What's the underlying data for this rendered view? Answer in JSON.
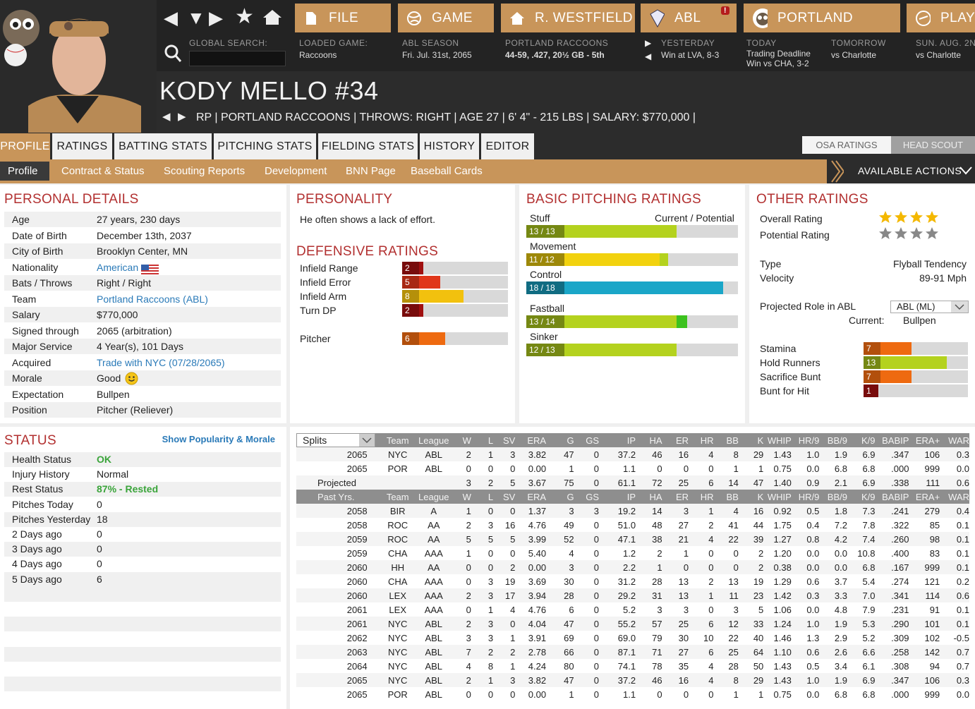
{
  "nav": {
    "file": "FILE",
    "game": "GAME",
    "manager": "R. WESTFIELD",
    "league": "ABL",
    "team": "PORTLAND",
    "play": "PLAY",
    "global_search_label": "GLOBAL SEARCH:",
    "global_search_value": ""
  },
  "loaded_game": {
    "label": "LOADED GAME:",
    "value": "Raccoons"
  },
  "season": {
    "label": "ABL SEASON",
    "value": "Fri. Jul. 31st, 2065"
  },
  "team_record": {
    "label": "PORTLAND RACCOONS",
    "value": "44-59, .427, 20½ GB - 5th"
  },
  "yesterday": {
    "label": "YESTERDAY",
    "value": "Win at LVA, 8-3"
  },
  "today": {
    "label": "TODAY",
    "line1": "Trading Deadline",
    "line2": "Win vs CHA, 3-2"
  },
  "tomorrow": {
    "label": "TOMORROW",
    "value": "vs Charlotte"
  },
  "next": {
    "label": "SUN. AUG. 2N",
    "value": "vs Charlotte"
  },
  "player": {
    "name": "KODY MELLO  #34",
    "info": "RP | PORTLAND RACCOONS  |  THROWS: RIGHT  |  AGE 27  |  6' 4\" - 215 LBS  |  SALARY: $770,000  |"
  },
  "tabs": [
    "PROFILE",
    "RATINGS",
    "BATTING STATS",
    "PITCHING STATS",
    "FIELDING STATS",
    "HISTORY",
    "EDITOR"
  ],
  "rating_toggle": [
    "OSA RATINGS",
    "HEAD SCOUT"
  ],
  "subnav": [
    "Profile",
    "Contract & Status",
    "Scouting Reports",
    "Development",
    "BNN Page",
    "Baseball Cards"
  ],
  "available_actions": "AVAILABLE ACTIONS",
  "personal": {
    "title": "PERSONAL DETAILS",
    "rows": [
      [
        "Age",
        "27 years, 230 days"
      ],
      [
        "Date of Birth",
        "December 13th, 2037"
      ],
      [
        "City of Birth",
        "Brooklyn Center, MN"
      ],
      [
        "Nationality",
        "American"
      ],
      [
        "Bats / Throws",
        "Right / Right"
      ],
      [
        "Team",
        "Portland Raccoons (ABL)"
      ],
      [
        "Salary",
        "$770,000"
      ],
      [
        "Signed through",
        "2065 (arbitration)"
      ],
      [
        "Major Service",
        "4 Year(s), 101 Days"
      ],
      [
        "Acquired",
        "Trade with NYC (07/28/2065)"
      ],
      [
        "Morale",
        "Good"
      ],
      [
        "Expectation",
        "Bullpen"
      ],
      [
        "Position",
        "Pitcher (Reliever)"
      ]
    ]
  },
  "personality": {
    "title": "PERSONALITY",
    "text": "He often shows a lack of effort."
  },
  "defensive": {
    "title": "DEFENSIVE RATINGS",
    "items": [
      {
        "label": "Infield Range",
        "value": "2",
        "pct": 0.2,
        "color": "#a01010"
      },
      {
        "label": "Infield Error",
        "value": "5",
        "pct": 0.36,
        "color": "#e0361a"
      },
      {
        "label": "Infield Arm",
        "value": "8",
        "pct": 0.58,
        "color": "#f2c10e"
      },
      {
        "label": "Turn DP",
        "value": "2",
        "pct": 0.2,
        "color": "#a01010"
      },
      {
        "label": "Pitcher",
        "value": "6",
        "pct": 0.41,
        "color": "#ee6a10"
      }
    ]
  },
  "pitching": {
    "title": "BASIC PITCHING RATINGS",
    "header": "Current / Potential",
    "items": [
      {
        "label": "Stuff",
        "value": "13 / 13",
        "cur": 0.71,
        "pot": 0.71,
        "color": "#b4d21e",
        "pcolor": "#b4d21e"
      },
      {
        "label": "Movement",
        "value": "11 / 12",
        "cur": 0.63,
        "pot": 0.67,
        "color": "#f2d20e",
        "pcolor": "#b4d21e"
      },
      {
        "label": "Control",
        "value": "18 / 18",
        "cur": 0.93,
        "pot": 0.93,
        "color": "#1aa6c8",
        "pcolor": "#1aa6c8"
      },
      {
        "label": "Fastball",
        "value": "13 / 14",
        "cur": 0.71,
        "pot": 0.76,
        "color": "#b4d21e",
        "pcolor": "#3cc21e"
      },
      {
        "label": "Sinker",
        "value": "12 / 13",
        "cur": 0.67,
        "pot": 0.71,
        "color": "#b4d21e",
        "pcolor": "#b4d21e"
      }
    ]
  },
  "other": {
    "title": "OTHER RATINGS",
    "overall_label": "Overall Rating",
    "overall_stars": 4,
    "potential_label": "Potential Rating",
    "potential_stars": 4,
    "type_label": "Type",
    "type_value": "Flyball Tendency",
    "velocity_label": "Velocity",
    "velocity_value": "89-91 Mph",
    "role_label": "Projected Role in ABL",
    "role_select": "ABL (ML)",
    "current_label": "Current:",
    "current_value": "Bullpen",
    "items": [
      {
        "label": "Stamina",
        "value": "7",
        "pct": 0.46,
        "color": "#ee6a10"
      },
      {
        "label": "Hold Runners",
        "value": "13",
        "pct": 0.8,
        "color": "#b4d21e"
      },
      {
        "label": "Sacrifice Bunt",
        "value": "7",
        "pct": 0.46,
        "color": "#ee6a10"
      },
      {
        "label": "Bunt for Hit",
        "value": "1",
        "pct": 0.14,
        "color": "#a01010"
      }
    ]
  },
  "status": {
    "title": "STATUS",
    "link": "Show Popularity & Morale",
    "rows": [
      [
        "Health Status",
        "OK"
      ],
      [
        "Injury History",
        "Normal"
      ],
      [
        "Rest Status",
        "87% - Rested"
      ],
      [
        "Pitches Today",
        "0"
      ],
      [
        "Pitches Yesterday",
        "18"
      ],
      [
        "2 Days ago",
        "0"
      ],
      [
        "3 Days ago",
        "0"
      ],
      [
        "4 Days ago",
        "0"
      ],
      [
        "5 Days ago",
        "6"
      ]
    ]
  },
  "stats": {
    "splits_label": "Splits",
    "header": [
      "Team",
      "League",
      "W",
      "L",
      "SV",
      "ERA",
      "G",
      "GS",
      "IP",
      "HA",
      "ER",
      "HR",
      "BB",
      "K",
      "WHIP",
      "HR/9",
      "BB/9",
      "K/9",
      "BABIP",
      "ERA+",
      "WAR"
    ],
    "current": [
      [
        "2065",
        "NYC",
        "ABL",
        "2",
        "1",
        "3",
        "3.82",
        "47",
        "0",
        "37.2",
        "46",
        "16",
        "4",
        "8",
        "29",
        "1.43",
        "1.0",
        "1.9",
        "6.9",
        ".347",
        "106",
        "0.3"
      ],
      [
        "2065",
        "POR",
        "ABL",
        "0",
        "0",
        "0",
        "0.00",
        "1",
        "0",
        "1.1",
        "0",
        "0",
        "0",
        "1",
        "1",
        "0.75",
        "0.0",
        "6.8",
        "6.8",
        ".000",
        "999",
        "0.0"
      ],
      [
        "Projected",
        "",
        "",
        "3",
        "2",
        "5",
        "3.67",
        "75",
        "0",
        "61.1",
        "72",
        "25",
        "6",
        "14",
        "47",
        "1.40",
        "0.9",
        "2.1",
        "6.9",
        ".338",
        "111",
        "0.6"
      ]
    ],
    "past_label": "Past Yrs.",
    "past": [
      [
        "2058",
        "BIR",
        "A",
        "1",
        "0",
        "0",
        "1.37",
        "3",
        "3",
        "19.2",
        "14",
        "3",
        "1",
        "4",
        "16",
        "0.92",
        "0.5",
        "1.8",
        "7.3",
        ".241",
        "279",
        "0.4"
      ],
      [
        "2058",
        "ROC",
        "AA",
        "2",
        "3",
        "16",
        "4.76",
        "49",
        "0",
        "51.0",
        "48",
        "27",
        "2",
        "41",
        "44",
        "1.75",
        "0.4",
        "7.2",
        "7.8",
        ".322",
        "85",
        "0.1"
      ],
      [
        "2059",
        "ROC",
        "AA",
        "5",
        "5",
        "5",
        "3.99",
        "52",
        "0",
        "47.1",
        "38",
        "21",
        "4",
        "22",
        "39",
        "1.27",
        "0.8",
        "4.2",
        "7.4",
        ".260",
        "98",
        "0.1"
      ],
      [
        "2059",
        "CHA",
        "AAA",
        "1",
        "0",
        "0",
        "5.40",
        "4",
        "0",
        "1.2",
        "2",
        "1",
        "0",
        "0",
        "2",
        "1.20",
        "0.0",
        "0.0",
        "10.8",
        ".400",
        "83",
        "0.1"
      ],
      [
        "2060",
        "HH",
        "AA",
        "0",
        "0",
        "2",
        "0.00",
        "3",
        "0",
        "2.2",
        "1",
        "0",
        "0",
        "0",
        "2",
        "0.38",
        "0.0",
        "0.0",
        "6.8",
        ".167",
        "999",
        "0.1"
      ],
      [
        "2060",
        "CHA",
        "AAA",
        "0",
        "3",
        "19",
        "3.69",
        "30",
        "0",
        "31.2",
        "28",
        "13",
        "2",
        "13",
        "19",
        "1.29",
        "0.6",
        "3.7",
        "5.4",
        ".274",
        "121",
        "0.2"
      ],
      [
        "2060",
        "LEX",
        "AAA",
        "2",
        "3",
        "17",
        "3.94",
        "28",
        "0",
        "29.2",
        "31",
        "13",
        "1",
        "11",
        "23",
        "1.42",
        "0.3",
        "3.3",
        "7.0",
        ".341",
        "114",
        "0.6"
      ],
      [
        "2061",
        "LEX",
        "AAA",
        "0",
        "1",
        "4",
        "4.76",
        "6",
        "0",
        "5.2",
        "3",
        "3",
        "0",
        "3",
        "5",
        "1.06",
        "0.0",
        "4.8",
        "7.9",
        ".231",
        "91",
        "0.1"
      ],
      [
        "2061",
        "NYC",
        "ABL",
        "2",
        "3",
        "0",
        "4.04",
        "47",
        "0",
        "55.2",
        "57",
        "25",
        "6",
        "12",
        "33",
        "1.24",
        "1.0",
        "1.9",
        "5.3",
        ".290",
        "101",
        "0.1"
      ],
      [
        "2062",
        "NYC",
        "ABL",
        "3",
        "3",
        "1",
        "3.91",
        "69",
        "0",
        "69.0",
        "79",
        "30",
        "10",
        "22",
        "40",
        "1.46",
        "1.3",
        "2.9",
        "5.2",
        ".309",
        "102",
        "-0.5"
      ],
      [
        "2063",
        "NYC",
        "ABL",
        "7",
        "2",
        "2",
        "2.78",
        "66",
        "0",
        "87.1",
        "71",
        "27",
        "6",
        "25",
        "64",
        "1.10",
        "0.6",
        "2.6",
        "6.6",
        ".258",
        "142",
        "0.7"
      ],
      [
        "2064",
        "NYC",
        "ABL",
        "4",
        "8",
        "1",
        "4.24",
        "80",
        "0",
        "74.1",
        "78",
        "35",
        "4",
        "28",
        "50",
        "1.43",
        "0.5",
        "3.4",
        "6.1",
        ".308",
        "94",
        "0.7"
      ],
      [
        "2065",
        "NYC",
        "ABL",
        "2",
        "1",
        "3",
        "3.82",
        "47",
        "0",
        "37.2",
        "46",
        "16",
        "4",
        "8",
        "29",
        "1.43",
        "1.0",
        "1.9",
        "6.9",
        ".347",
        "106",
        "0.3"
      ],
      [
        "2065",
        "POR",
        "ABL",
        "0",
        "0",
        "0",
        "0.00",
        "1",
        "0",
        "1.1",
        "0",
        "0",
        "0",
        "1",
        "1",
        "0.75",
        "0.0",
        "6.8",
        "6.8",
        ".000",
        "999",
        "0.0"
      ]
    ]
  }
}
